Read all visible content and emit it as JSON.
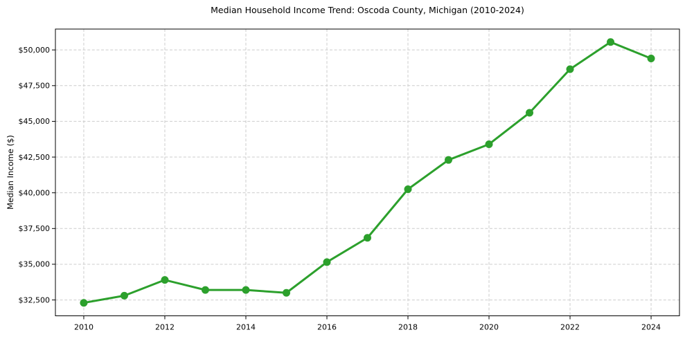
{
  "chart_data": {
    "type": "line",
    "title": "Median Household Income Trend: Oscoda County, Michigan (2010-2024)",
    "xlabel": "",
    "ylabel": "Median Income ($)",
    "x": [
      2010,
      2011,
      2012,
      2013,
      2014,
      2015,
      2016,
      2017,
      2018,
      2019,
      2020,
      2021,
      2022,
      2023,
      2024
    ],
    "series": [
      {
        "name": "Median household income",
        "values": [
          32300,
          32800,
          33900,
          33200,
          33200,
          33000,
          35150,
          36850,
          40250,
          42300,
          43400,
          45600,
          48650,
          50550,
          49400
        ],
        "color": "#2ca02c",
        "marker": "circle"
      }
    ],
    "xlim": [
      2009.3,
      2024.7
    ],
    "ylim": [
      31390,
      51460
    ],
    "xticks": {
      "values": [
        2010,
        2012,
        2014,
        2016,
        2018,
        2020,
        2022,
        2024
      ],
      "labels": [
        "2010",
        "2012",
        "2014",
        "2016",
        "2018",
        "2020",
        "2022",
        "2024"
      ]
    },
    "yticks": {
      "values": [
        32500,
        35000,
        37500,
        40000,
        42500,
        45000,
        47500,
        50000
      ],
      "labels": [
        "$32,500",
        "$35,000",
        "$37,500",
        "$40,000",
        "$42,500",
        "$45,000",
        "$47,500",
        "$50,000"
      ]
    },
    "grid": {
      "show": true,
      "axis": "both",
      "style": "dashed",
      "color": "#cccccc"
    },
    "legend_position": "none",
    "colors": {
      "line": "#2ca02c",
      "background": "#ffffff",
      "spine": "#000000",
      "tick_label": "#000000",
      "grid": "#cccccc"
    }
  }
}
